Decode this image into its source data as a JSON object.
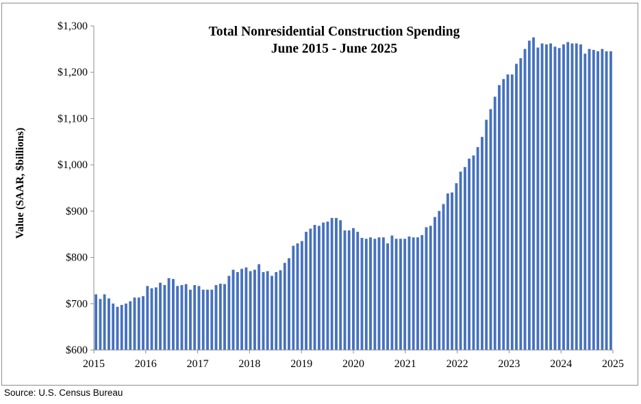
{
  "source": "Source:  U.S. Census Bureau",
  "chart_data": {
    "type": "bar",
    "title": "Total Nonresidential Construction Spending",
    "subtitle": "June 2015 - June 2025",
    "xlabel": "",
    "ylabel": "Value (SAAR, $billions)",
    "ylim": [
      600,
      1300
    ],
    "yticks": [
      600,
      700,
      800,
      900,
      1000,
      1100,
      1200,
      1300
    ],
    "ytick_labels": [
      "$600",
      "$700",
      "$800",
      "$900",
      "$1,000",
      "$1,100",
      "$1,200",
      "$1,300"
    ],
    "xtick_labels": [
      "2015",
      "2016",
      "2017",
      "2018",
      "2019",
      "2020",
      "2021",
      "2022",
      "2023",
      "2024",
      "2025"
    ],
    "grid": false,
    "legend": "none",
    "bar_color": "#4472c4",
    "bar_edge_color": "#2f5597",
    "categories_start": "2015-06",
    "categories_end": "2025-06",
    "values": [
      720,
      710,
      720,
      711,
      700,
      693,
      697,
      700,
      705,
      713,
      713,
      716,
      738,
      733,
      735,
      745,
      740,
      755,
      753,
      738,
      740,
      742,
      730,
      740,
      738,
      730,
      730,
      730,
      740,
      743,
      742,
      760,
      773,
      768,
      775,
      778,
      770,
      773,
      785,
      768,
      770,
      760,
      768,
      772,
      788,
      798,
      825,
      830,
      835,
      855,
      862,
      870,
      868,
      875,
      877,
      885,
      885,
      880,
      858,
      858,
      863,
      855,
      842,
      840,
      843,
      840,
      843,
      843,
      830,
      847,
      840,
      840,
      840,
      845,
      843,
      843,
      848,
      865,
      868,
      887,
      900,
      915,
      938,
      940,
      960,
      985,
      995,
      1013,
      1020,
      1038,
      1060,
      1097,
      1120,
      1147,
      1172,
      1185,
      1195,
      1195,
      1218,
      1230,
      1250,
      1268,
      1275,
      1253,
      1262,
      1260,
      1262,
      1255,
      1252,
      1260,
      1265,
      1262,
      1262,
      1260,
      1240,
      1250,
      1248,
      1245,
      1250,
      1245,
      1245
    ]
  }
}
